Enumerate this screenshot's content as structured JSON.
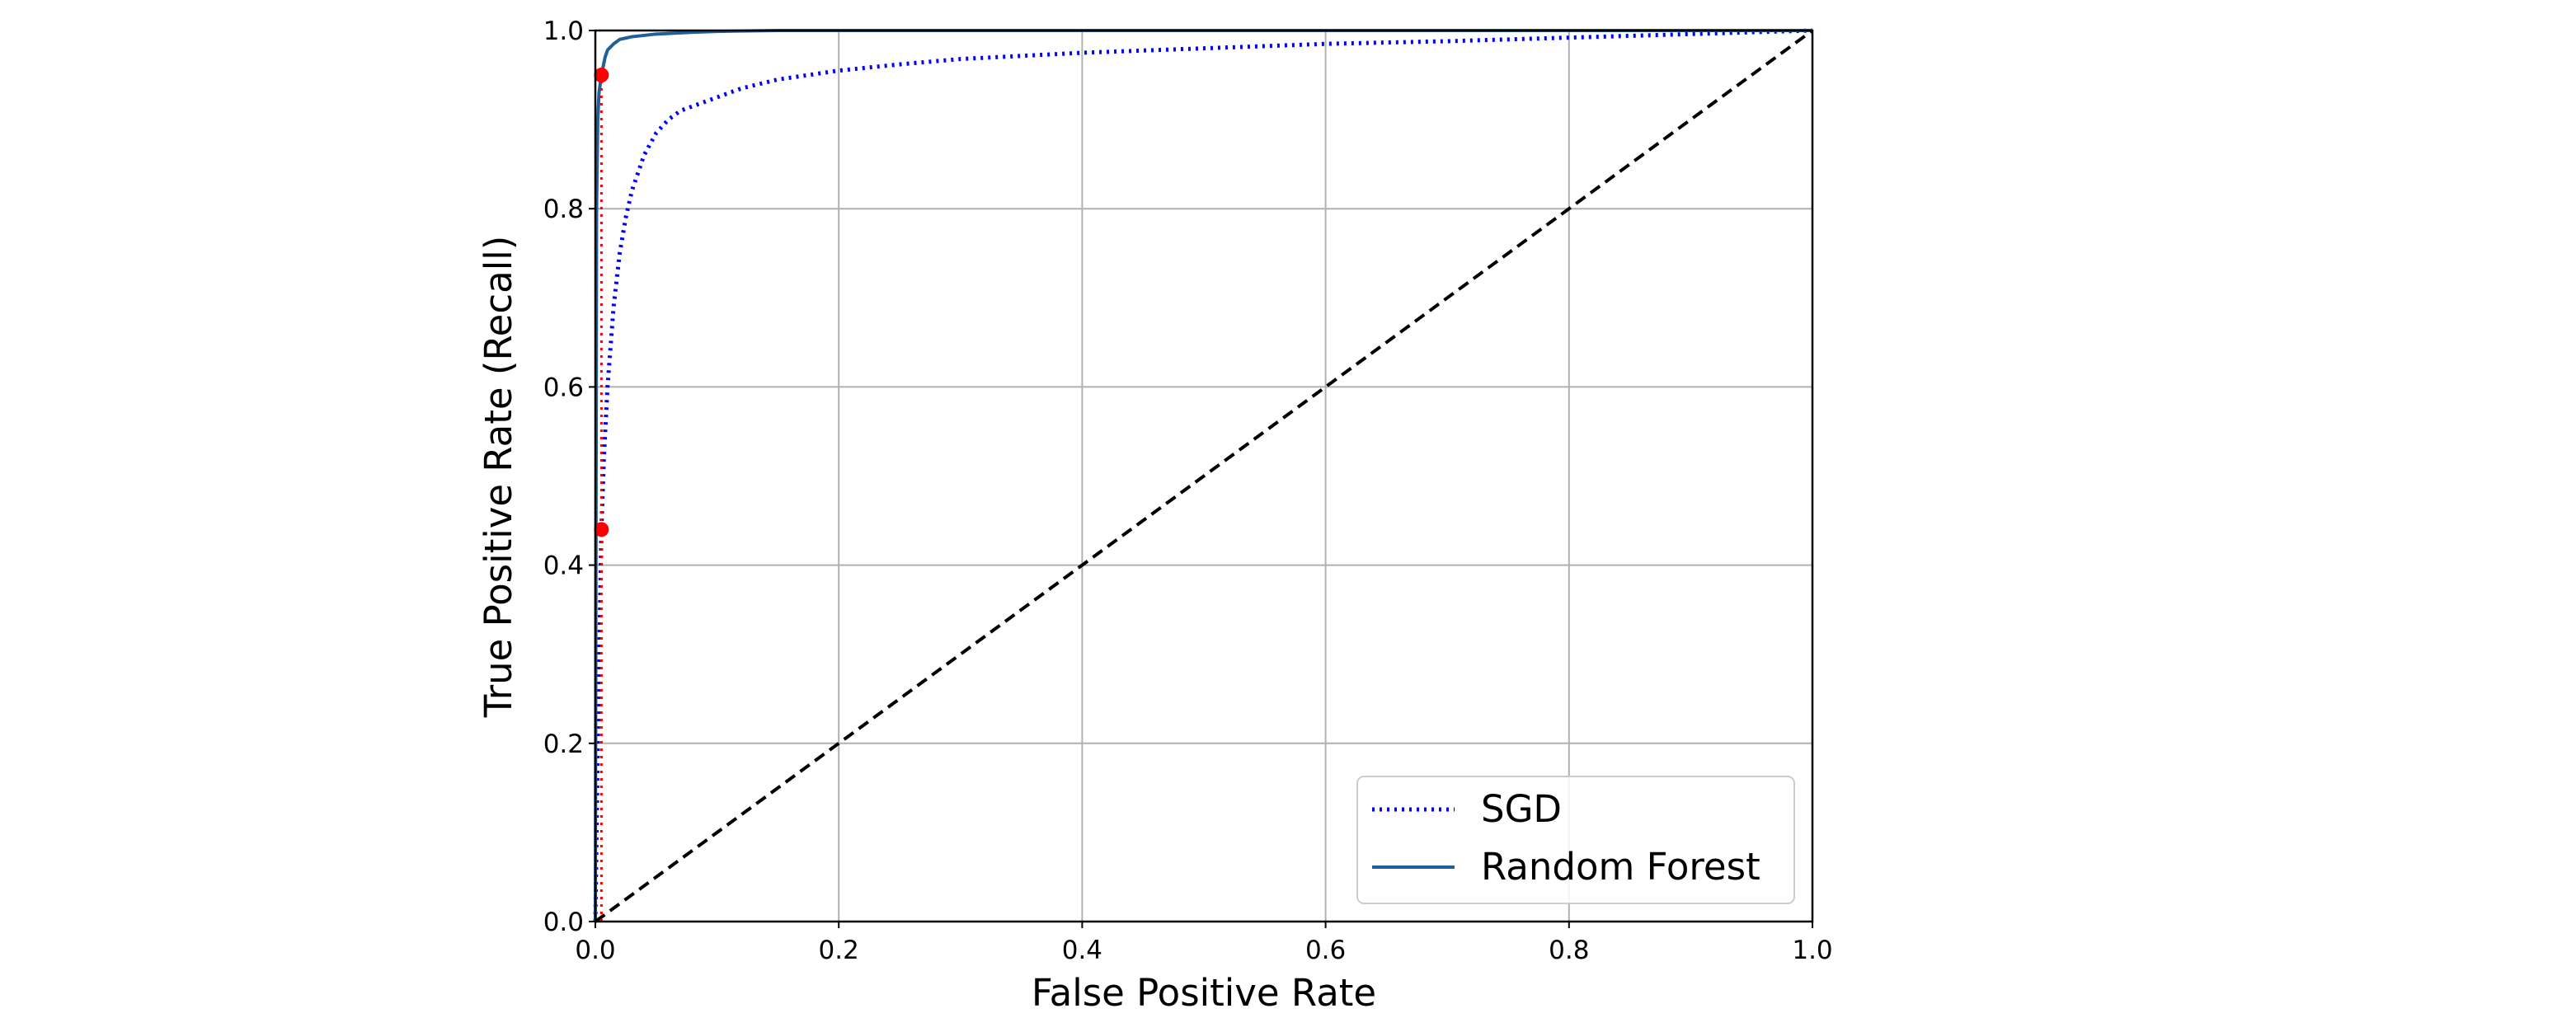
{
  "chart_data": {
    "type": "line",
    "title": "",
    "xlabel": "False Positive Rate",
    "ylabel": "True Positive Rate (Recall)",
    "xlim": [
      0,
      1
    ],
    "ylim": [
      0,
      1
    ],
    "xticks": [
      "0.0",
      "0.2",
      "0.4",
      "0.6",
      "0.8",
      "1.0"
    ],
    "yticks": [
      "0.0",
      "0.2",
      "0.4",
      "0.6",
      "0.8",
      "1.0"
    ],
    "grid": true,
    "legend_position": "lower-right",
    "series": [
      {
        "name": "SGD",
        "style": "dotted",
        "color": "#0000ff",
        "x": [
          0,
          0.002,
          0.004,
          0.005,
          0.007,
          0.01,
          0.015,
          0.02,
          0.025,
          0.03,
          0.04,
          0.05,
          0.06,
          0.07,
          0.08,
          0.1,
          0.12,
          0.15,
          0.2,
          0.25,
          0.3,
          0.4,
          0.5,
          0.6,
          0.7,
          0.8,
          0.9,
          1.0
        ],
        "y": [
          0,
          0.2,
          0.36,
          0.44,
          0.52,
          0.6,
          0.69,
          0.75,
          0.79,
          0.82,
          0.86,
          0.885,
          0.9,
          0.91,
          0.915,
          0.925,
          0.935,
          0.945,
          0.955,
          0.962,
          0.968,
          0.975,
          0.98,
          0.985,
          0.988,
          0.992,
          0.996,
          1.0
        ]
      },
      {
        "name": "Random Forest",
        "style": "solid",
        "color": "#1f5f9a",
        "x": [
          0,
          0.001,
          0.002,
          0.003,
          0.005,
          0.008,
          0.01,
          0.015,
          0.02,
          0.03,
          0.05,
          0.08,
          0.1,
          0.15,
          0.2,
          0.3,
          0.5,
          0.7,
          1.0
        ],
        "y": [
          0,
          0.8,
          0.9,
          0.93,
          0.95,
          0.97,
          0.978,
          0.985,
          0.99,
          0.993,
          0.996,
          0.998,
          0.999,
          1.0,
          1.0,
          1.0,
          1.0,
          1.0,
          1.0
        ]
      },
      {
        "name": "",
        "style": "dashed",
        "color": "#000000",
        "x": [
          0,
          1
        ],
        "y": [
          0,
          1
        ]
      }
    ],
    "markers": [
      {
        "x": 0.005,
        "y": 0.44,
        "color": "#ff0000"
      },
      {
        "x": 0.005,
        "y": 0.95,
        "color": "#ff0000"
      }
    ],
    "reference_lines": [
      {
        "x": [
          0.005,
          0.005
        ],
        "y": [
          0,
          0.95
        ],
        "color": "#ff0000",
        "style": "dotted"
      }
    ],
    "legend": [
      {
        "label": "SGD",
        "style": "dotted",
        "color": "#0000ff"
      },
      {
        "label": "Random Forest",
        "style": "solid",
        "color": "#1f5f9a"
      }
    ]
  }
}
